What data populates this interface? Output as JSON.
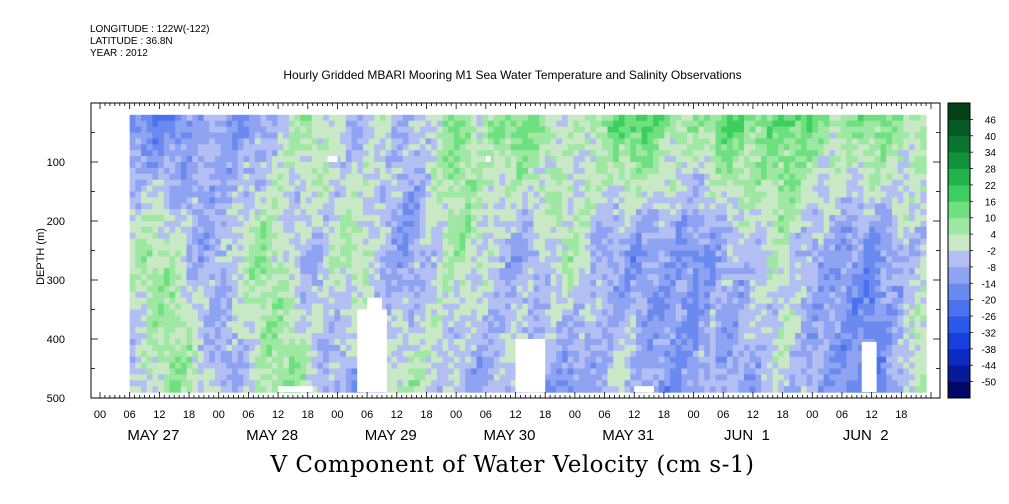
{
  "meta": {
    "longitude": "LONGITUDE : 122W(-122)",
    "latitude": "LATITUDE : 36.8N",
    "year": "YEAR : 2012"
  },
  "title": "Hourly Gridded MBARI Mooring M1 Sea Water Temperature and Salinity Observations",
  "variable_label": "V Component of Water Velocity (cm s-1)",
  "chart_data": {
    "type": "heatmap",
    "title": "Hourly Gridded MBARI Mooring M1 Sea Water Temperature and Salinity Observations",
    "ylabel": "DEPTH (m)",
    "xlabel": "",
    "colorbar_label": "V Component of Water Velocity (cm s-1)",
    "ylim": [
      500,
      0
    ],
    "y_ticks": [
      100,
      200,
      300,
      400,
      500
    ],
    "x_range_hours": [
      "2012-05-27 00:00",
      "2012-06-02 23:00"
    ],
    "x_hour_ticks": [
      "00",
      "06",
      "12",
      "18",
      "00",
      "06",
      "12",
      "18",
      "00",
      "06",
      "12",
      "18",
      "00",
      "06",
      "12",
      "18",
      "00",
      "06",
      "12",
      "18",
      "00",
      "06",
      "12",
      "18",
      "00",
      "06",
      "12",
      "18"
    ],
    "x_day_labels": [
      "MAY 27",
      "MAY 28",
      "MAY 29",
      "MAY 30",
      "MAY 31",
      "JUN  1",
      "JUN  2"
    ],
    "data_extent": {
      "time_start": "2012-05-27 06:00",
      "time_end": "2012-06-02 23:00",
      "depth_top": 20,
      "depth_bottom": 490
    },
    "colorbar_levels": [
      -50,
      -44,
      -38,
      -32,
      -26,
      -20,
      -14,
      -8,
      -2,
      4,
      10,
      16,
      22,
      28,
      34,
      40,
      46
    ],
    "colorbar_colors": [
      "#000a66",
      "#071a99",
      "#0c2bc0",
      "#1540dd",
      "#2a58ea",
      "#4b72ee",
      "#6a8af0",
      "#8ea3f1",
      "#b3bff3",
      "#c9e8c6",
      "#9ee8a3",
      "#6ee07f",
      "#3ccf5e",
      "#20b44a",
      "#11933b",
      "#0a7530",
      "#065a25",
      "#034018"
    ],
    "time_series_profile": {
      "note": "representative dominant velocity per 3-hour column (top layer, middle layer, bottom layer), cm s-1",
      "top": [
        -14,
        -16,
        -20,
        -18,
        -12,
        -8,
        -10,
        -14,
        -16,
        -10,
        -4,
        2,
        8,
        6,
        -4,
        -8,
        -6,
        2,
        -2,
        -8,
        -4,
        4,
        10,
        8,
        2,
        6,
        12,
        14,
        10,
        4,
        -2,
        2,
        8,
        12,
        16,
        18,
        14,
        10,
        6,
        8,
        12,
        16,
        14,
        10,
        12,
        14,
        16,
        12,
        8,
        6,
        10,
        14,
        12,
        8,
        4,
        6
      ],
      "mid": [
        2,
        6,
        8,
        4,
        -6,
        -10,
        -8,
        -2,
        6,
        8,
        4,
        -4,
        -8,
        -6,
        2,
        6,
        4,
        -6,
        -10,
        -12,
        -8,
        -2,
        4,
        6,
        2,
        -4,
        -8,
        -10,
        -6,
        0,
        4,
        2,
        -6,
        -10,
        -12,
        -14,
        -12,
        -10,
        -14,
        -16,
        -12,
        -8,
        -6,
        -4,
        -2,
        2,
        -4,
        -8,
        -10,
        -12,
        -14,
        -16,
        -12,
        -8,
        -4,
        -2
      ],
      "bottom": [
        -6,
        -2,
        4,
        8,
        6,
        -2,
        -8,
        -10,
        -6,
        2,
        8,
        10,
        4,
        -4,
        -8,
        -12,
        -10,
        -4,
        2,
        6,
        4,
        -2,
        -6,
        -10,
        -12,
        -8,
        -4,
        0,
        -6,
        -10,
        -14,
        -12,
        -8,
        -4,
        -2,
        -6,
        -10,
        -14,
        -12,
        -8,
        -6,
        -10,
        -12,
        -8,
        -4,
        -2,
        -6,
        -10,
        -12,
        -14,
        -16,
        -20,
        -14,
        -6,
        2,
        6
      ]
    }
  }
}
